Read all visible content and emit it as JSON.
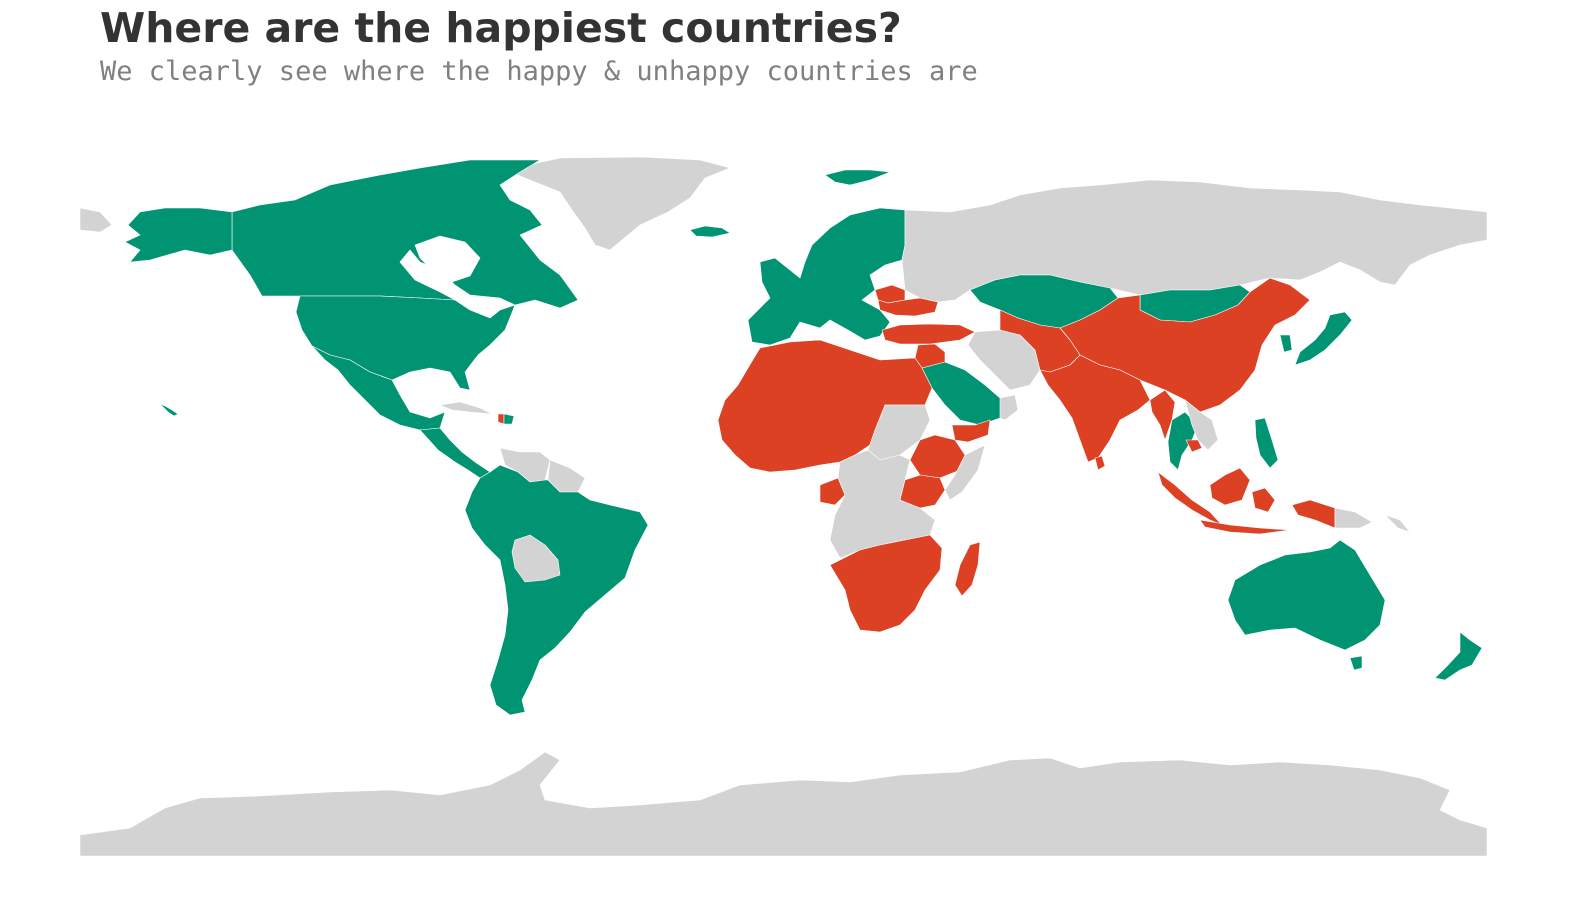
{
  "title": "Where are the happiest countries?",
  "subtitle": "We clearly see where the happy & unhappy countries are",
  "colors": {
    "happy": "#009473",
    "unhappy": "#dd4124",
    "no_data": "#d3d3d3",
    "title": "#333333",
    "subtitle": "#808080",
    "background": "#ffffff"
  },
  "legend": "none",
  "regions": [
    {
      "name": "Canada",
      "category": "happy"
    },
    {
      "name": "United States",
      "category": "happy"
    },
    {
      "name": "Alaska",
      "category": "happy"
    },
    {
      "name": "Mexico",
      "category": "happy"
    },
    {
      "name": "Central America",
      "category": "happy"
    },
    {
      "name": "Cuba",
      "category": "no_data"
    },
    {
      "name": "Haiti",
      "category": "unhappy"
    },
    {
      "name": "Dominican Republic",
      "category": "happy"
    },
    {
      "name": "Hawaii",
      "category": "happy"
    },
    {
      "name": "Greenland",
      "category": "no_data"
    },
    {
      "name": "Iceland",
      "category": "happy"
    },
    {
      "name": "Venezuela",
      "category": "no_data"
    },
    {
      "name": "Guyana/Suriname",
      "category": "no_data"
    },
    {
      "name": "Bolivia",
      "category": "no_data"
    },
    {
      "name": "South America",
      "category": "happy"
    },
    {
      "name": "Europe",
      "category": "happy"
    },
    {
      "name": "Belarus",
      "category": "unhappy"
    },
    {
      "name": "Ukraine",
      "category": "unhappy"
    },
    {
      "name": "Turkey",
      "category": "unhappy"
    },
    {
      "name": "Russia",
      "category": "no_data"
    },
    {
      "name": "Kazakhstan",
      "category": "happy"
    },
    {
      "name": "Mongolia",
      "category": "happy"
    },
    {
      "name": "China",
      "category": "unhappy"
    },
    {
      "name": "India",
      "category": "unhappy"
    },
    {
      "name": "Sri Lanka",
      "category": "unhappy"
    },
    {
      "name": "Iran",
      "category": "no_data"
    },
    {
      "name": "Saudi Arabia",
      "category": "happy"
    },
    {
      "name": "Yemen",
      "category": "unhappy"
    },
    {
      "name": "North Africa",
      "category": "unhappy"
    },
    {
      "name": "Sudan",
      "category": "no_data"
    },
    {
      "name": "Ethiopia",
      "category": "unhappy"
    },
    {
      "name": "Somalia",
      "category": "no_data"
    },
    {
      "name": "Central Africa",
      "category": "no_data"
    },
    {
      "name": "Southern Africa",
      "category": "unhappy"
    },
    {
      "name": "Madagascar",
      "category": "unhappy"
    },
    {
      "name": "Japan",
      "category": "happy"
    },
    {
      "name": "South Korea",
      "category": "happy"
    },
    {
      "name": "Thailand",
      "category": "happy"
    },
    {
      "name": "Vietnam/Laos",
      "category": "no_data"
    },
    {
      "name": "Cambodia",
      "category": "unhappy"
    },
    {
      "name": "Philippines",
      "category": "happy"
    },
    {
      "name": "Indonesia",
      "category": "unhappy"
    },
    {
      "name": "Papua New Guinea",
      "category": "no_data"
    },
    {
      "name": "Australia",
      "category": "happy"
    },
    {
      "name": "Tasmania",
      "category": "happy"
    },
    {
      "name": "New Zealand",
      "category": "happy"
    },
    {
      "name": "Antarctica",
      "category": "no_data"
    }
  ]
}
